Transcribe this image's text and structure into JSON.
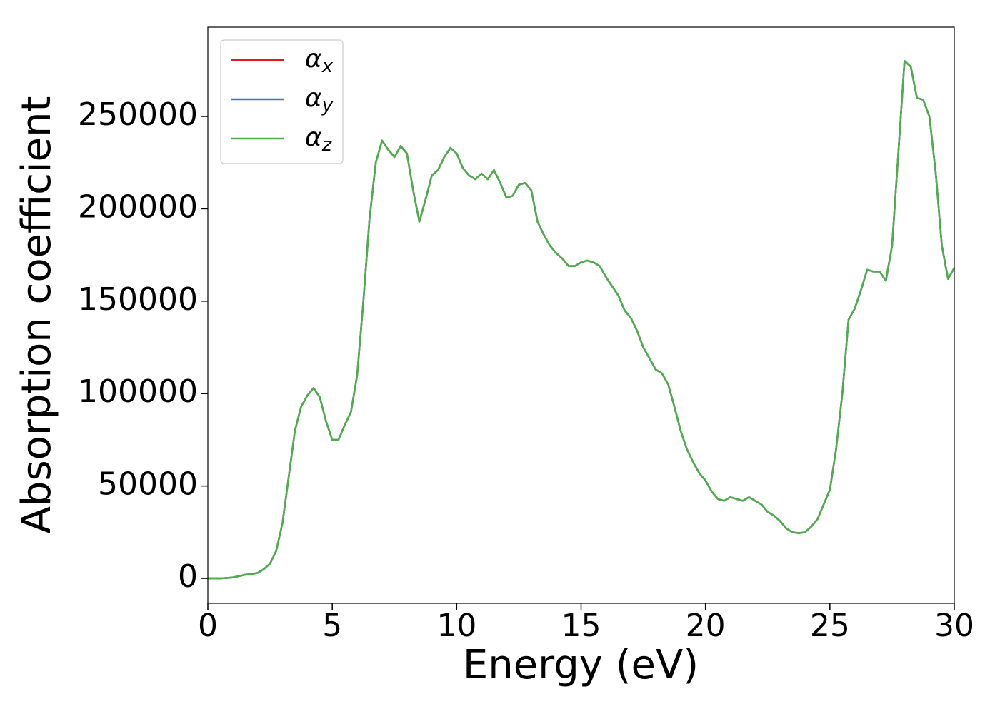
{
  "chart_data": {
    "type": "line",
    "xlabel": "Energy (eV)",
    "ylabel": "Absorption coefficient",
    "x": [
      0,
      0.25,
      0.5,
      0.75,
      1,
      1.25,
      1.5,
      1.75,
      2,
      2.25,
      2.5,
      2.75,
      3,
      3.25,
      3.5,
      3.75,
      4,
      4.25,
      4.5,
      4.75,
      5,
      5.25,
      5.5,
      5.75,
      6,
      6.25,
      6.5,
      6.75,
      7,
      7.25,
      7.5,
      7.75,
      8,
      8.25,
      8.5,
      8.75,
      9,
      9.25,
      9.5,
      9.75,
      10,
      10.25,
      10.5,
      10.75,
      11,
      11.25,
      11.5,
      11.75,
      12,
      12.25,
      12.5,
      12.75,
      13,
      13.25,
      13.5,
      13.75,
      14,
      14.25,
      14.5,
      14.75,
      15,
      15.25,
      15.5,
      15.75,
      16,
      16.25,
      16.5,
      16.75,
      17,
      17.25,
      17.5,
      17.75,
      18,
      18.25,
      18.5,
      18.75,
      19,
      19.25,
      19.5,
      19.75,
      20,
      20.25,
      20.5,
      20.75,
      21,
      21.25,
      21.5,
      21.75,
      22,
      22.25,
      22.5,
      22.75,
      23,
      23.25,
      23.5,
      23.75,
      24,
      24.25,
      24.5,
      24.75,
      25,
      25.25,
      25.5,
      25.75,
      26,
      26.25,
      26.5,
      26.75,
      27,
      27.25,
      27.5,
      27.75,
      28,
      28.25,
      28.5,
      28.75,
      29,
      29.25,
      29.5,
      29.75,
      30
    ],
    "series": [
      {
        "name": "αx",
        "color": "#e41a1c",
        "values": [
          0,
          0,
          0,
          200,
          500,
          1200,
          2000,
          2300,
          3000,
          5000,
          8000,
          15000,
          30000,
          55000,
          80000,
          93000,
          99000,
          103000,
          98000,
          85000,
          75000,
          75000,
          83000,
          90000,
          110000,
          150000,
          195000,
          225000,
          237000,
          232000,
          228000,
          234000,
          230000,
          210000,
          193000,
          205000,
          218000,
          221000,
          228000,
          233000,
          230000,
          222000,
          218000,
          216000,
          219000,
          216000,
          221000,
          214000,
          206000,
          207000,
          213000,
          214000,
          210000,
          193000,
          186000,
          180000,
          176000,
          173000,
          169000,
          169000,
          171000,
          172000,
          171000,
          169000,
          163000,
          158000,
          153000,
          145000,
          141000,
          134000,
          125000,
          119000,
          113000,
          111000,
          105000,
          93000,
          80000,
          70000,
          63000,
          57000,
          53000,
          47000,
          43000,
          42000,
          44000,
          43000,
          42000,
          44000,
          42000,
          40000,
          36000,
          34000,
          31000,
          27000,
          25000,
          24500,
          25000,
          28000,
          32000,
          40000,
          48000,
          70000,
          100000,
          140000,
          146000,
          156000,
          167000,
          166000,
          166000,
          161000,
          180000,
          230000,
          280000,
          277000,
          260000,
          259000,
          250000,
          220000,
          180000,
          162000,
          168000
        ]
      },
      {
        "name": "αy",
        "color": "#377eb8",
        "values": [
          0,
          0,
          0,
          200,
          500,
          1200,
          2000,
          2300,
          3000,
          5000,
          8000,
          15000,
          30000,
          55000,
          80000,
          93000,
          99000,
          103000,
          98000,
          85000,
          75000,
          75000,
          83000,
          90000,
          110000,
          150000,
          195000,
          225000,
          237000,
          232000,
          228000,
          234000,
          230000,
          210000,
          193000,
          205000,
          218000,
          221000,
          228000,
          233000,
          230000,
          222000,
          218000,
          216000,
          219000,
          216000,
          221000,
          214000,
          206000,
          207000,
          213000,
          214000,
          210000,
          193000,
          186000,
          180000,
          176000,
          173000,
          169000,
          169000,
          171000,
          172000,
          171000,
          169000,
          163000,
          158000,
          153000,
          145000,
          141000,
          134000,
          125000,
          119000,
          113000,
          111000,
          105000,
          93000,
          80000,
          70000,
          63000,
          57000,
          53000,
          47000,
          43000,
          42000,
          44000,
          43000,
          42000,
          44000,
          42000,
          40000,
          36000,
          34000,
          31000,
          27000,
          25000,
          24500,
          25000,
          28000,
          32000,
          40000,
          48000,
          70000,
          100000,
          140000,
          146000,
          156000,
          167000,
          166000,
          166000,
          161000,
          180000,
          230000,
          280000,
          277000,
          260000,
          259000,
          250000,
          220000,
          180000,
          162000,
          168000
        ]
      },
      {
        "name": "αz",
        "color": "#4daf4a",
        "values": [
          0,
          0,
          0,
          200,
          500,
          1200,
          2000,
          2300,
          3000,
          5000,
          8000,
          15000,
          30000,
          55000,
          80000,
          93000,
          99000,
          103000,
          98000,
          85000,
          75000,
          75000,
          83000,
          90000,
          110000,
          150000,
          195000,
          225000,
          237000,
          232000,
          228000,
          234000,
          230000,
          210000,
          193000,
          205000,
          218000,
          221000,
          228000,
          233000,
          230000,
          222000,
          218000,
          216000,
          219000,
          216000,
          221000,
          214000,
          206000,
          207000,
          213000,
          214000,
          210000,
          193000,
          186000,
          180000,
          176000,
          173000,
          169000,
          169000,
          171000,
          172000,
          171000,
          169000,
          163000,
          158000,
          153000,
          145000,
          141000,
          134000,
          125000,
          119000,
          113000,
          111000,
          105000,
          93000,
          80000,
          70000,
          63000,
          57000,
          53000,
          47000,
          43000,
          42000,
          44000,
          43000,
          42000,
          44000,
          42000,
          40000,
          36000,
          34000,
          31000,
          27000,
          25000,
          24500,
          25000,
          28000,
          32000,
          40000,
          48000,
          70000,
          100000,
          140000,
          146000,
          156000,
          167000,
          166000,
          166000,
          161000,
          180000,
          230000,
          280000,
          277000,
          260000,
          259000,
          250000,
          220000,
          180000,
          162000,
          168000
        ]
      }
    ],
    "xlim": [
      0,
      30
    ],
    "xticks": [
      0,
      5,
      10,
      15,
      20,
      25,
      30
    ],
    "ylim": [
      -13500,
      298300
    ],
    "yticks": [
      0,
      50000,
      100000,
      150000,
      200000,
      250000
    ],
    "legend": "upper left"
  }
}
